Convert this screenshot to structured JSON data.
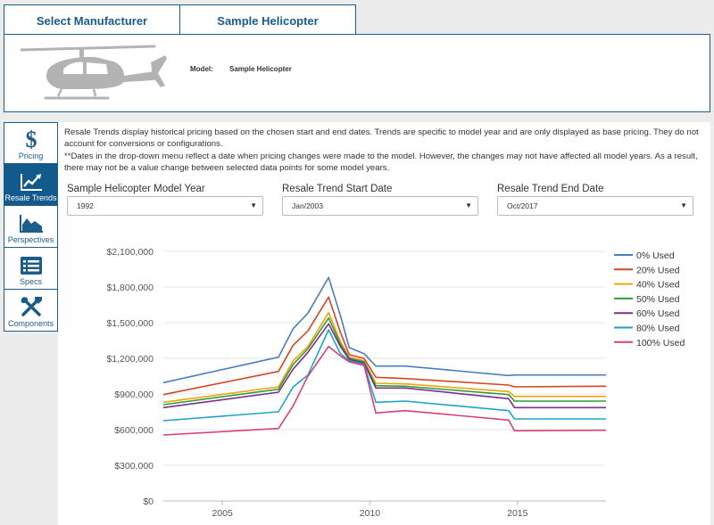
{
  "tabs": [
    {
      "label": "Select Manufacturer"
    },
    {
      "label": "Sample Helicopter"
    }
  ],
  "model": {
    "label": "Model:",
    "value": "Sample Helicopter"
  },
  "sidebar": {
    "items": [
      {
        "label": "Pricing",
        "icon": "dollar-icon",
        "active": false
      },
      {
        "label": "Resale Trends",
        "icon": "trend-chart-icon",
        "active": true
      },
      {
        "label": "Perspectives",
        "icon": "area-chart-icon",
        "active": false
      },
      {
        "label": "Specs",
        "icon": "spec-list-icon",
        "active": false
      },
      {
        "label": "Components",
        "icon": "tools-icon",
        "active": false
      }
    ]
  },
  "description": {
    "line1": "Resale Trends display historical pricing based on the chosen start and end dates.  Trends are specific to model year and are only displayed as base pricing.  They do not account for conversions or configurations.",
    "line2": "**Dates in the drop-down menu reflect a date when pricing changes were made to the model. However, the changes may not have affected all model years.  As a result, there may not be a value change between selected data points for some model years."
  },
  "selectors": [
    {
      "label": "Sample Helicopter Model Year",
      "value": "1992"
    },
    {
      "label": "Resale Trend Start Date",
      "value": "Jan/2003"
    },
    {
      "label": "Resale Trend End Date",
      "value": "Oct/2017"
    }
  ],
  "chart_data": {
    "type": "line",
    "ylim": [
      0,
      2100000
    ],
    "xlim": [
      2003,
      2018
    ],
    "yticks": [
      "$2,100,000",
      "$1,800,000",
      "$1,500,000",
      "$1,200,000",
      "$900,000",
      "$600,000",
      "$300,000",
      "$0"
    ],
    "ytick_values": [
      2100000,
      1800000,
      1500000,
      1200000,
      900000,
      600000,
      300000,
      0
    ],
    "xticks": [
      "2005",
      "2010",
      "2015"
    ],
    "xtick_values": [
      2005,
      2010,
      2015
    ],
    "grid": true,
    "legend_position": "right",
    "x": [
      2003.0,
      2006.9,
      2007.4,
      2007.9,
      2008.6,
      2009.0,
      2009.3,
      2009.8,
      2010.2,
      2011.2,
      2014.7,
      2014.9,
      2018.0
    ],
    "series": [
      {
        "name": "0% Used",
        "color": "#4a7ebb",
        "values": [
          995000,
          1210000,
          1450000,
          1580000,
          1880000,
          1560000,
          1290000,
          1240000,
          1135000,
          1135000,
          1055000,
          1060000,
          1060000
        ]
      },
      {
        "name": "20% Used",
        "color": "#d24726",
        "values": [
          895000,
          1090000,
          1310000,
          1430000,
          1715000,
          1420000,
          1230000,
          1200000,
          1040000,
          1030000,
          975000,
          960000,
          965000
        ]
      },
      {
        "name": "40% Used",
        "color": "#f0a30a",
        "values": [
          830000,
          960000,
          1180000,
          1300000,
          1585000,
          1340000,
          1210000,
          1180000,
          990000,
          985000,
          920000,
          880000,
          880000
        ]
      },
      {
        "name": "50% Used",
        "color": "#2e9e3a",
        "values": [
          810000,
          940000,
          1150000,
          1280000,
          1540000,
          1320000,
          1200000,
          1170000,
          970000,
          965000,
          895000,
          840000,
          840000
        ]
      },
      {
        "name": "60% Used",
        "color": "#7b2d8e",
        "values": [
          785000,
          915000,
          1110000,
          1250000,
          1490000,
          1300000,
          1190000,
          1160000,
          950000,
          950000,
          860000,
          785000,
          785000
        ]
      },
      {
        "name": "80% Used",
        "color": "#1fa2c8",
        "values": [
          675000,
          750000,
          960000,
          1060000,
          1440000,
          1240000,
          1180000,
          1150000,
          830000,
          840000,
          760000,
          690000,
          690000
        ]
      },
      {
        "name": "100% Used",
        "color": "#d93f78",
        "values": [
          555000,
          610000,
          800000,
          1050000,
          1300000,
          1220000,
          1170000,
          1140000,
          740000,
          760000,
          680000,
          590000,
          595000
        ]
      }
    ]
  }
}
